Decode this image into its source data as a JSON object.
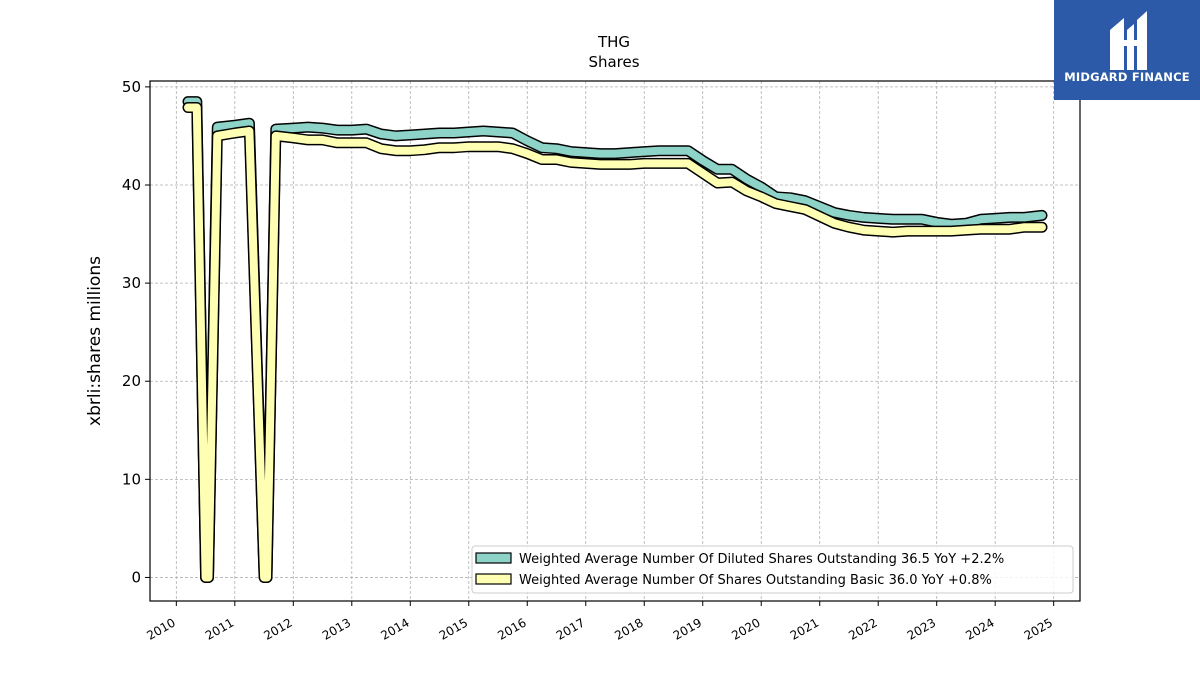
{
  "logo": {
    "text": "MIDGARD FINANCE",
    "bg_color": "#2d5aa8"
  },
  "chart_data": {
    "type": "area",
    "title": "THG",
    "subtitle": "Shares",
    "ylabel": "xbrli:shares millions",
    "xlim": [
      2009.55,
      2025.45
    ],
    "ylim": [
      -2.4,
      50.6
    ],
    "grid": true,
    "legend_position": "lower-right",
    "x_ticks": [
      2010,
      2011,
      2012,
      2013,
      2014,
      2015,
      2016,
      2017,
      2018,
      2019,
      2020,
      2021,
      2022,
      2023,
      2024,
      2025
    ],
    "y_ticks": [
      0,
      10,
      20,
      30,
      40,
      50
    ],
    "x": [
      2010.2,
      2010.35,
      2010.5,
      2010.55,
      2010.7,
      2011.0,
      2011.25,
      2011.5,
      2011.55,
      2011.7,
      2012.0,
      2012.25,
      2012.5,
      2012.75,
      2013.0,
      2013.25,
      2013.5,
      2013.75,
      2014.0,
      2014.25,
      2014.5,
      2014.75,
      2015.0,
      2015.25,
      2015.5,
      2015.75,
      2016.0,
      2016.25,
      2016.5,
      2016.75,
      2017.0,
      2017.25,
      2017.5,
      2017.75,
      2018.0,
      2018.25,
      2018.5,
      2018.75,
      2019.0,
      2019.25,
      2019.5,
      2019.75,
      2020.0,
      2020.25,
      2020.5,
      2020.75,
      2021.0,
      2021.25,
      2021.5,
      2021.75,
      2022.0,
      2022.25,
      2022.5,
      2022.75,
      2023.0,
      2023.25,
      2023.5,
      2023.75,
      2024.0,
      2024.25,
      2024.5,
      2024.8
    ],
    "series": [
      {
        "name": "Weighted Average Number Of Diluted Shares Outstanding  36.5 YoY +2.2%",
        "color": "#8dd3c7",
        "values": [
          48.5,
          48.5,
          0.0,
          0.0,
          45.9,
          46.1,
          46.3,
          0.0,
          0.0,
          45.7,
          45.8,
          45.9,
          45.8,
          45.6,
          45.6,
          45.7,
          45.2,
          45.0,
          45.1,
          45.2,
          45.3,
          45.3,
          45.4,
          45.5,
          45.4,
          45.3,
          44.5,
          43.8,
          43.7,
          43.4,
          43.3,
          43.2,
          43.2,
          43.3,
          43.4,
          43.5,
          43.5,
          43.5,
          42.5,
          41.6,
          41.6,
          40.6,
          39.8,
          38.8,
          38.7,
          38.4,
          37.8,
          37.2,
          36.9,
          36.7,
          36.6,
          36.5,
          36.5,
          36.5,
          36.2,
          36.0,
          36.1,
          36.5,
          36.6,
          36.7,
          36.7,
          36.9
        ]
      },
      {
        "name": "Weighted Average Number Of Shares Outstanding Basic  36.0 YoY +0.8%",
        "color": "#ffffb3",
        "values": [
          47.9,
          47.9,
          0.0,
          0.0,
          45.0,
          45.3,
          45.5,
          0.0,
          0.0,
          45.0,
          44.8,
          44.6,
          44.6,
          44.3,
          44.3,
          44.3,
          43.7,
          43.5,
          43.5,
          43.6,
          43.8,
          43.8,
          43.9,
          43.9,
          43.9,
          43.7,
          43.2,
          42.6,
          42.6,
          42.3,
          42.2,
          42.1,
          42.1,
          42.1,
          42.2,
          42.2,
          42.2,
          42.2,
          41.2,
          40.2,
          40.3,
          39.4,
          38.8,
          38.1,
          37.8,
          37.5,
          36.8,
          36.1,
          35.7,
          35.4,
          35.3,
          35.2,
          35.3,
          35.3,
          35.3,
          35.3,
          35.4,
          35.5,
          35.5,
          35.5,
          35.7,
          35.7
        ]
      }
    ]
  }
}
